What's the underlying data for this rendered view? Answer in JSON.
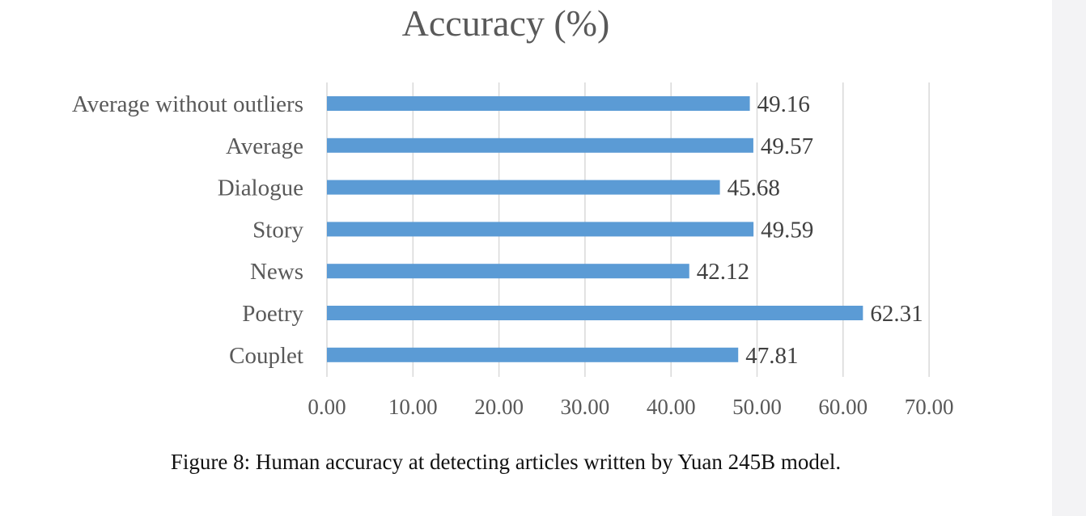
{
  "chart_data": {
    "type": "bar",
    "orientation": "horizontal",
    "title": "Accuracy (%)",
    "categories": [
      "Average without outliers",
      "Average",
      "Dialogue",
      "Story",
      "News",
      "Poetry",
      "Couplet"
    ],
    "values": [
      49.16,
      49.57,
      45.68,
      49.59,
      42.12,
      62.31,
      47.81
    ],
    "data_labels": [
      "49.16",
      "49.57",
      "45.68",
      "49.59",
      "42.12",
      "62.31",
      "47.81"
    ],
    "xticks": [
      "0.00",
      "10.00",
      "20.00",
      "30.00",
      "40.00",
      "50.00",
      "60.00",
      "70.00"
    ],
    "xlim": [
      0,
      70
    ],
    "grid": true,
    "legend": "none",
    "bar_color": "#5b9bd5",
    "grid_color": "#d9d9d9"
  },
  "caption": "Figure 8: Human accuracy at detecting articles written by Yuan 245B model."
}
